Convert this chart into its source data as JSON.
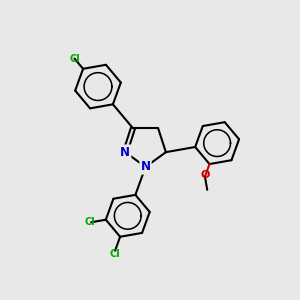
{
  "background_color": "#e8e8e8",
  "bond_color": "#000000",
  "nitrogen_color": "#0000cc",
  "oxygen_color": "#cc0000",
  "chlorine_color": "#00aa00",
  "line_width": 1.5,
  "figsize": [
    3.0,
    3.0
  ],
  "dpi": 100,
  "xlim": [
    0,
    10
  ],
  "ylim": [
    0,
    10
  ]
}
